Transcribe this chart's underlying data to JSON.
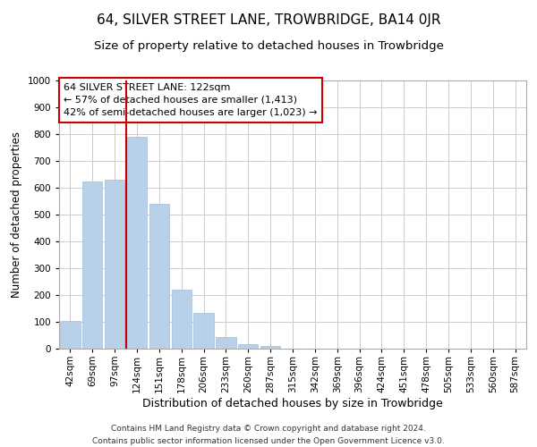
{
  "title": "64, SILVER STREET LANE, TROWBRIDGE, BA14 0JR",
  "subtitle": "Size of property relative to detached houses in Trowbridge",
  "xlabel": "Distribution of detached houses by size in Trowbridge",
  "ylabel": "Number of detached properties",
  "footer_line1": "Contains HM Land Registry data © Crown copyright and database right 2024.",
  "footer_line2": "Contains public sector information licensed under the Open Government Licence v3.0.",
  "bar_labels": [
    "42sqm",
    "69sqm",
    "97sqm",
    "124sqm",
    "151sqm",
    "178sqm",
    "206sqm",
    "233sqm",
    "260sqm",
    "287sqm",
    "315sqm",
    "342sqm",
    "369sqm",
    "396sqm",
    "424sqm",
    "451sqm",
    "478sqm",
    "505sqm",
    "533sqm",
    "560sqm",
    "587sqm"
  ],
  "bar_values": [
    103,
    625,
    630,
    790,
    540,
    220,
    135,
    45,
    18,
    10,
    0,
    0,
    0,
    0,
    0,
    0,
    0,
    0,
    0,
    0,
    0
  ],
  "bar_color": "#b8d0e8",
  "bar_edge_color": "#a0bcda",
  "reference_line_x": 2.5,
  "reference_line_color": "#cc0000",
  "annotation_line1": "64 SILVER STREET LANE: 122sqm",
  "annotation_line2": "← 57% of detached houses are smaller (1,413)",
  "annotation_line3": "42% of semi-detached houses are larger (1,023) →",
  "annotation_box_edge_color": "#cc0000",
  "annotation_box_face_color": "#ffffff",
  "ylim": [
    0,
    1000
  ],
  "yticks": [
    0,
    100,
    200,
    300,
    400,
    500,
    600,
    700,
    800,
    900,
    1000
  ],
  "background_color": "#ffffff",
  "grid_color": "#cccccc",
  "title_fontsize": 11,
  "subtitle_fontsize": 9.5,
  "xlabel_fontsize": 9,
  "ylabel_fontsize": 8.5,
  "tick_fontsize": 7.5,
  "annotation_fontsize": 8,
  "footer_fontsize": 6.5
}
